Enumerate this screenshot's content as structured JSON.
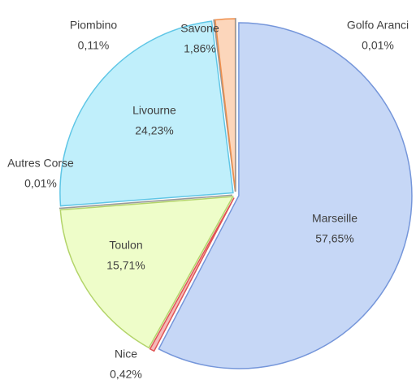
{
  "chart_data": {
    "type": "pie",
    "categories": [
      "Marseille",
      "Nice",
      "Toulon",
      "Autres Corse",
      "Livourne",
      "Piombino",
      "Savone",
      "Golfo Aranci"
    ],
    "values": [
      57.65,
      0.42,
      15.71,
      0.01,
      24.23,
      0.11,
      1.86,
      0.01
    ],
    "value_labels": [
      "57,65%",
      "0,42%",
      "15,71%",
      "0,01%",
      "24,23%",
      "0,11%",
      "1,86%",
      "0,01%"
    ],
    "colors": [
      "#c6d7f6",
      "#f6b9b9",
      "#eefdc9",
      "#d0d0d0",
      "#c0effb",
      "#d8d8d8",
      "#fcd6bb",
      "#e0e0e0"
    ],
    "strokes": [
      "#7596da",
      "#e05555",
      "#b3d46a",
      "#999999",
      "#5fc6e6",
      "#999999",
      "#ef8f4c",
      "#999999"
    ]
  }
}
